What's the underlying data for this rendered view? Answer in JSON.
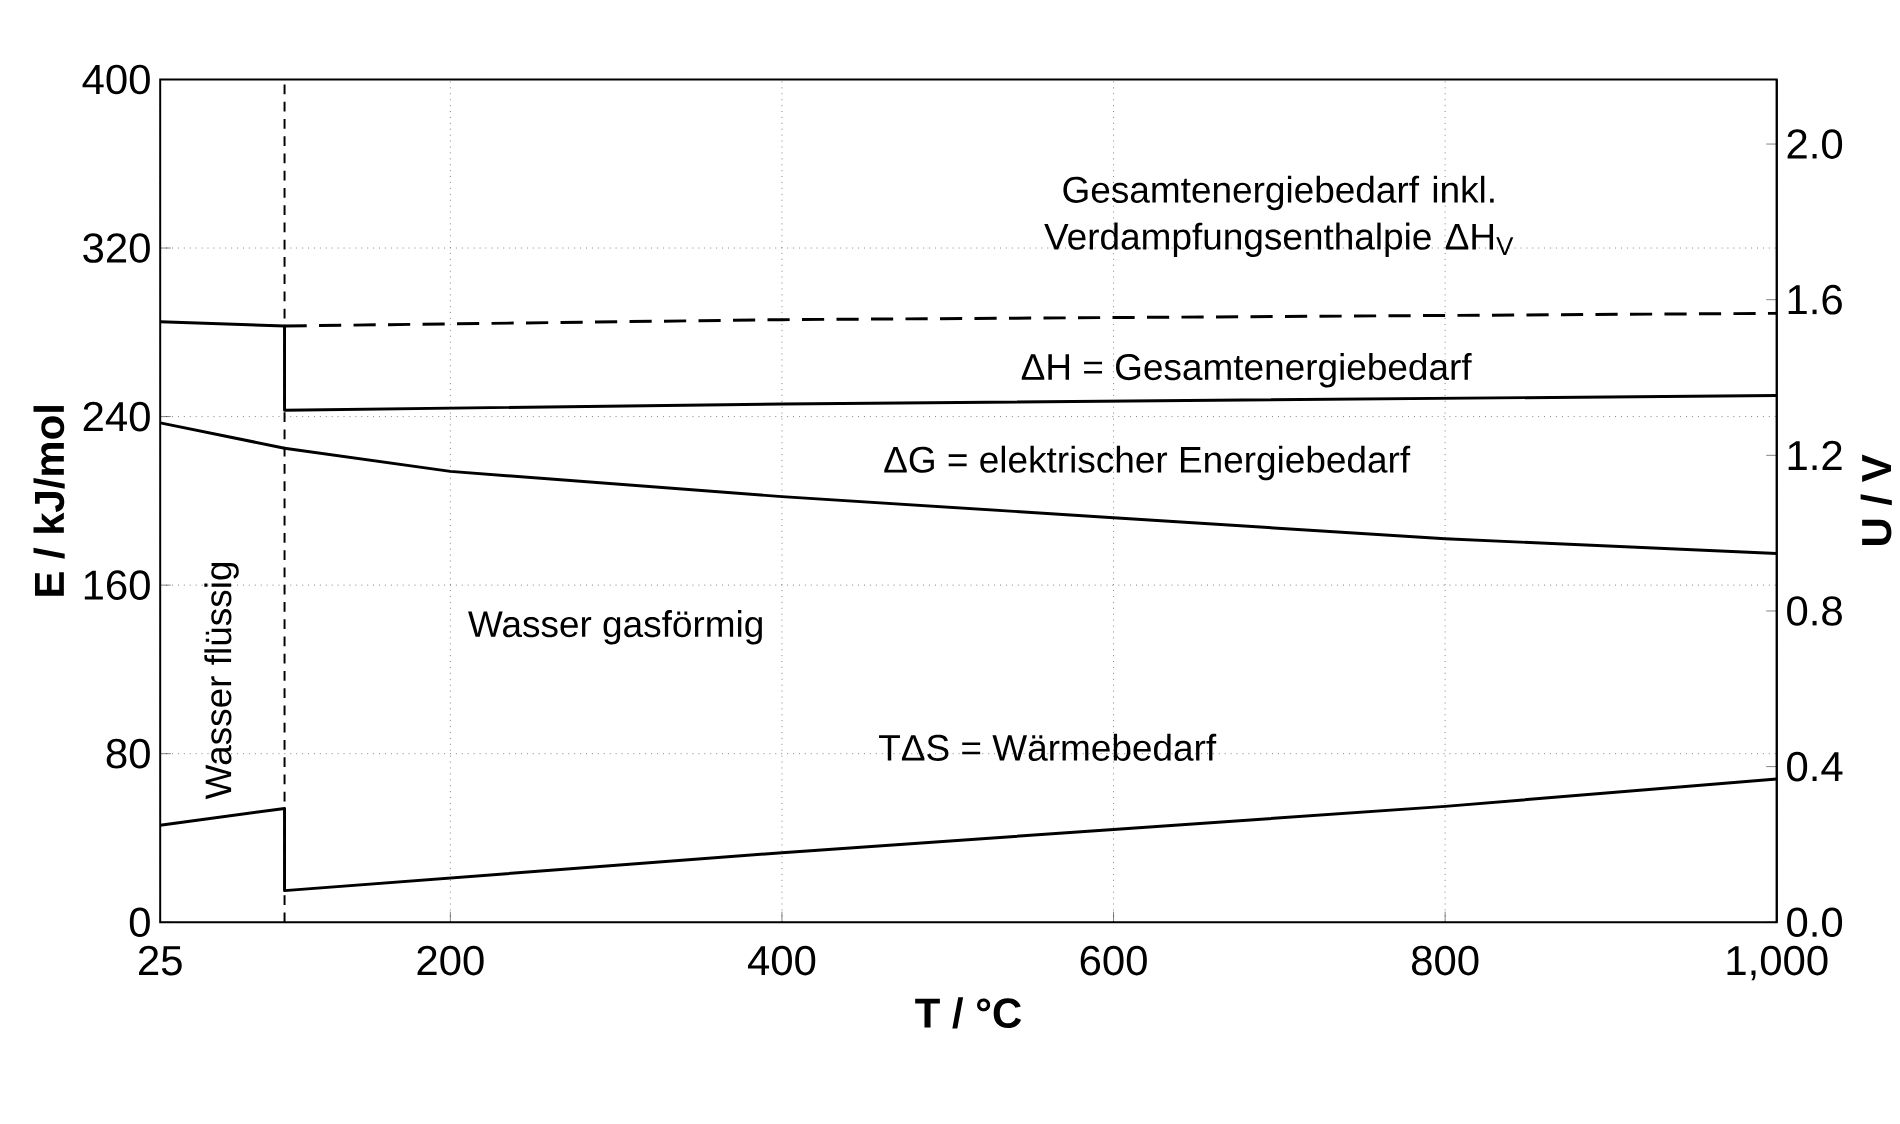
{
  "chart_data": {
    "type": "line",
    "xlabel": "T / °C",
    "ylabel": "E / kJ/mol",
    "y2label": "U / V",
    "xlim": [
      25,
      1000
    ],
    "xticks": [
      25,
      200,
      400,
      600,
      800,
      {
        "value": 1000,
        "label": "1,000"
      }
    ],
    "ylim": [
      0,
      400
    ],
    "yticks": [
      0,
      80,
      160,
      240,
      320,
      400
    ],
    "y2lim": [
      0,
      2.166
    ],
    "y2ticks": [
      {
        "value": 0,
        "label": "0.0"
      },
      0.4,
      0.8,
      1.2,
      1.6,
      {
        "value": 2,
        "label": "2.0"
      }
    ],
    "grid": true,
    "marker": "none",
    "series": [
      {
        "name": "Gesamtenergiebedarf inkl. Verdampfungsenthalpie ΔH$_{V}$",
        "color": "#000000",
        "line_style": "dashed",
        "x": [
          100,
          400,
          1000
        ],
        "values": [
          283,
          286,
          289
        ]
      },
      {
        "name": "ΔH = Gesamtenergiebedarf",
        "color": "#000000",
        "line_style": "solid",
        "x": [
          25,
          100,
          100,
          400,
          1000
        ],
        "values": [
          285,
          283,
          243,
          246,
          250
        ]
      },
      {
        "name": "ΔG = elektrischer Energiebedarf",
        "color": "#000000",
        "line_style": "solid",
        "x": [
          25,
          100,
          200,
          400,
          600,
          800,
          1000
        ],
        "values": [
          237,
          225,
          214,
          202,
          192,
          182,
          175
        ]
      },
      {
        "name": "TΔS = Wärmebedarf",
        "color": "#000000",
        "line_style": "solid",
        "x": [
          25,
          100,
          100,
          400,
          600,
          800,
          1000
        ],
        "values": [
          46,
          54,
          15,
          33,
          44,
          55,
          68
        ]
      }
    ],
    "ref_lines": [
      {
        "axis": "x",
        "value": 100,
        "line_style": "dashed",
        "color": "#000000"
      }
    ],
    "annotations": [
      "Wasser flüssig",
      "Wasser gasförmig"
    ]
  }
}
